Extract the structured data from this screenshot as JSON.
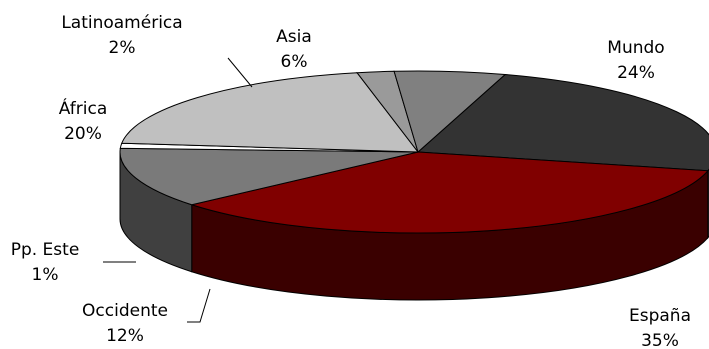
{
  "chart_data": {
    "type": "pie",
    "style": "3d-exploded-tilted",
    "title": "",
    "slices": [
      {
        "label": "Mundo",
        "value_label": "24%",
        "value": 24,
        "color": "#333333",
        "side_color": "#262626"
      },
      {
        "label": "España",
        "value_label": "35%",
        "value": 35,
        "color": "#800000",
        "side_color": "#3a0000"
      },
      {
        "label": "Occidente",
        "value_label": "12%",
        "value": 12,
        "color": "#7a7a7a",
        "side_color": "#404040"
      },
      {
        "label": "Pp. Este",
        "value_label": "1%",
        "value": 1,
        "color": "#ffffff",
        "side_color": "#cfcfcf"
      },
      {
        "label": "África",
        "value_label": "20%",
        "value": 20,
        "color": "#c0c0c0",
        "side_color": "#555555"
      },
      {
        "label": "Latinoamérica",
        "value_label": "2%",
        "value": 2,
        "color": "#9a9a9a",
        "side_color": "#5a5a5a"
      },
      {
        "label": "Asia",
        "value_label": "6%",
        "value": 6,
        "color": "#808080",
        "side_color": "#4a4a4a"
      }
    ],
    "legend": "none"
  }
}
